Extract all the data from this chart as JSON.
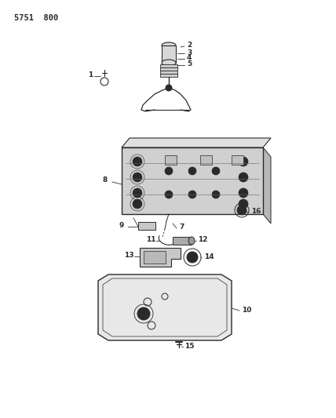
{
  "title": "5751  800",
  "bg_color": "#ffffff",
  "lc": "#2a2a2a",
  "fig_width": 4.28,
  "fig_height": 5.33,
  "dpi": 100,
  "label_fontsize": 6.5,
  "title_fontsize": 7.5
}
